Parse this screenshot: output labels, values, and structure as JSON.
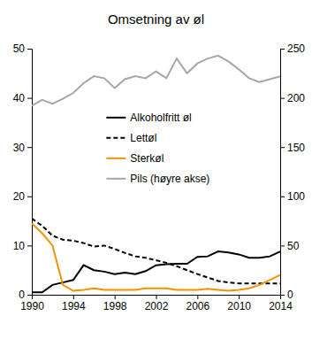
{
  "chart_data": {
    "type": "line",
    "title": "Omsetning av øl",
    "x": [
      1990,
      1991,
      1992,
      1993,
      1994,
      1995,
      1996,
      1997,
      1998,
      1999,
      2000,
      2001,
      2002,
      2003,
      2004,
      2005,
      2006,
      2007,
      2008,
      2009,
      2010,
      2011,
      2012,
      2013,
      2014
    ],
    "xlim": [
      1990,
      2014
    ],
    "xticks": [
      1990,
      1994,
      1998,
      2002,
      2006,
      2010,
      2014
    ],
    "ylim": [
      0,
      50
    ],
    "yticks": [
      0,
      10,
      20,
      30,
      40,
      50
    ],
    "y2lim": [
      0,
      250
    ],
    "y2ticks": [
      0,
      50,
      100,
      150,
      200,
      250
    ],
    "legend": "center",
    "series": [
      {
        "name": "Alkoholfritt øl",
        "color": "#000000",
        "line_style": "solid",
        "values": [
          0.5,
          0.5,
          2,
          2.5,
          3,
          6,
          5,
          4.7,
          4.2,
          4.5,
          4.2,
          4.8,
          6,
          6.2,
          6.3,
          6.3,
          7.7,
          7.8,
          8.8,
          8.6,
          8.2,
          7.5,
          7.5,
          7.8,
          8.8
        ]
      },
      {
        "name": "Lettøl",
        "color": "#000000",
        "line_style": "dashed",
        "values": [
          15.5,
          14,
          12,
          11.2,
          11,
          10.5,
          9.8,
          10,
          9.3,
          8.5,
          7.8,
          7.5,
          7,
          6.5,
          5.8,
          5,
          4.2,
          3.5,
          2.8,
          2.5,
          2.3,
          2.3,
          2.3,
          2.3,
          2.3
        ]
      },
      {
        "name": "Sterkøl",
        "color": "#f39200",
        "line_style": "solid",
        "values": [
          14.5,
          12.5,
          10,
          2,
          0.8,
          1,
          1.3,
          1,
          1,
          1,
          1,
          1.3,
          1.3,
          1.3,
          1,
          1,
          1,
          1.2,
          1,
          0.8,
          1,
          1.3,
          2,
          3,
          4
        ]
      },
      {
        "name": "Pils (høyre akse)",
        "color": "#a6a6a6",
        "line_style": "solid",
        "axis": "y2",
        "values": [
          192,
          198,
          194,
          199,
          205,
          215,
          222,
          220,
          210,
          219,
          222,
          220,
          227,
          220,
          240,
          225,
          235,
          240,
          243,
          237,
          229,
          220,
          216,
          219,
          222
        ]
      }
    ]
  }
}
